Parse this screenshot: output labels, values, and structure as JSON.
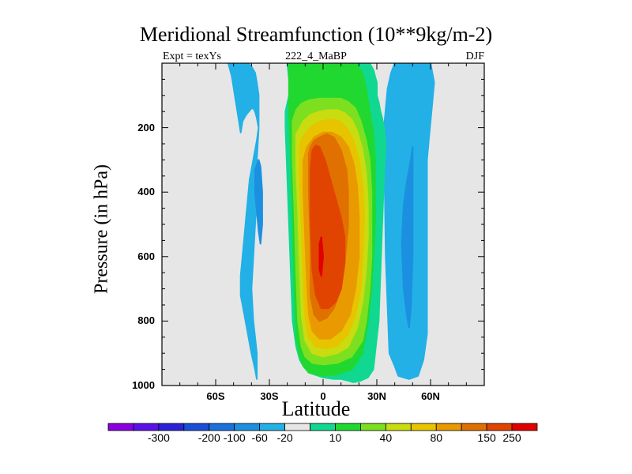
{
  "chart_data": {
    "type": "heatmap",
    "title": "Meridional Streamfunction (10**9kg/m-2)",
    "subtitle_left": "Expt = texYs",
    "subtitle_center": "222_4_MaBP",
    "subtitle_right": "DJF",
    "xlabel": "Latitude",
    "ylabel": "Pressure (in hPa)",
    "xlim": [
      -90,
      90
    ],
    "ylim": [
      1000,
      0
    ],
    "xticks": [
      "60S",
      "30S",
      "0",
      "30N",
      "60N"
    ],
    "xtick_values": [
      -60,
      -30,
      0,
      30,
      60
    ],
    "yticks": [
      "200",
      "400",
      "600",
      "800",
      "1000"
    ],
    "ytick_values": [
      200,
      400,
      600,
      800,
      1000
    ],
    "colorbar": {
      "labels": [
        "-300",
        "-200",
        "-100",
        "-60",
        "-20",
        "10",
        "40",
        "80",
        "150",
        "250"
      ],
      "colors": [
        "#8a00e0",
        "#5a10e6",
        "#2b22d8",
        "#1b4ed6",
        "#1b70dc",
        "#1c90e0",
        "#22b0e6",
        "#e6e6e6",
        "#10d890",
        "#20d830",
        "#7ce020",
        "#c8dc10",
        "#e8c400",
        "#e89a00",
        "#e07000",
        "#e04400",
        "#e00000"
      ],
      "label_after_index": [
        1,
        3,
        4,
        5,
        6,
        8,
        10,
        12,
        14,
        15
      ]
    },
    "background_color": "#e6e6e6",
    "regions": [
      {
        "name": "northern-weak-negative",
        "value": -20,
        "color": "#22b0e6",
        "lat": [
          -53,
          -51,
          -49,
          -47,
          -46,
          -45,
          -43,
          -40,
          -39,
          -38,
          -37,
          -36,
          -37,
          -39,
          -41,
          -42,
          -43,
          -44,
          -45,
          -46,
          -46,
          -44,
          -42,
          -40,
          -38,
          -37,
          -37,
          -37,
          -38,
          -39,
          -40,
          -39,
          -38,
          -37,
          -37,
          -36,
          -36,
          -37,
          -38,
          -40,
          -42,
          -44,
          -46,
          -48,
          -49,
          -50,
          -51,
          -52,
          -53
        ],
        "p": [
          0,
          40,
          110,
          180,
          215,
          180,
          160,
          140,
          140,
          150,
          170,
          200,
          240,
          300,
          360,
          420,
          480,
          540,
          600,
          660,
          720,
          780,
          840,
          900,
          950,
          980,
          950,
          900,
          850,
          800,
          700,
          600,
          500,
          400,
          300,
          200,
          100,
          60,
          30,
          10,
          0,
          0,
          0,
          0,
          0,
          0,
          0,
          0,
          0
        ]
      },
      {
        "name": "northern-negative-core",
        "value": -60,
        "color": "#1c90e0",
        "lat": [
          -38,
          -36,
          -35,
          -34,
          -34,
          -35,
          -36,
          -37,
          -38,
          -38,
          -38,
          -37
        ],
        "p": [
          330,
          300,
          320,
          400,
          500,
          560,
          520,
          460,
          400,
          360,
          330,
          330
        ]
      },
      {
        "name": "southern-weak-negative",
        "value": -20,
        "color": "#22b0e6",
        "lat": [
          42,
          44,
          47,
          50,
          52,
          58,
          60,
          62,
          61,
          60,
          59,
          58,
          58,
          58,
          58,
          58,
          58,
          58,
          56,
          53,
          48,
          42,
          40,
          37,
          35,
          34,
          36,
          38,
          40
        ],
        "p": [
          0,
          0,
          0,
          0,
          0,
          0,
          0,
          60,
          120,
          180,
          240,
          300,
          360,
          420,
          480,
          560,
          680,
          840,
          920,
          970,
          980,
          970,
          940,
          900,
          600,
          200,
          80,
          30,
          0
        ]
      },
      {
        "name": "southern-negative-core",
        "value": -60,
        "color": "#1c90e0",
        "lat": [
          50,
          49,
          47,
          45,
          44,
          45,
          47,
          48,
          49,
          50,
          50
        ],
        "p": [
          260,
          300,
          360,
          440,
          560,
          700,
          790,
          820,
          760,
          600,
          260
        ]
      },
      {
        "name": "hadley-10",
        "value": 10,
        "color": "#10d890",
        "lat": [
          -20,
          -19,
          -19,
          -21,
          -21,
          -19,
          -17,
          -15,
          -14,
          -13,
          -11,
          -8,
          0,
          6,
          10,
          14,
          17,
          21,
          25,
          28,
          31,
          33,
          34,
          35,
          34,
          33,
          32,
          31,
          30,
          30,
          30,
          29,
          28,
          27,
          26,
          26,
          25,
          24,
          23,
          22,
          20
        ],
        "p": [
          0,
          50,
          100,
          150,
          200,
          500,
          800,
          880,
          900,
          920,
          940,
          960,
          975,
          980,
          980,
          985,
          990,
          985,
          975,
          950,
          800,
          500,
          350,
          250,
          200,
          170,
          150,
          120,
          100,
          80,
          60,
          40,
          20,
          10,
          0,
          0,
          0,
          0,
          0,
          0,
          0
        ]
      },
      {
        "name": "hadley-40",
        "value": 40,
        "color": "#20d830",
        "lat": [
          -19,
          -19,
          -18,
          -17,
          -16,
          -15,
          -13,
          -11,
          -8,
          0,
          8,
          16,
          22,
          25,
          27,
          28,
          29,
          29,
          29,
          28,
          26,
          24,
          22,
          18,
          10,
          0,
          -8,
          -14,
          -18
        ],
        "p": [
          0,
          150,
          300,
          500,
          700,
          850,
          910,
          940,
          960,
          970,
          965,
          950,
          900,
          800,
          700,
          600,
          500,
          400,
          300,
          220,
          150,
          80,
          30,
          0,
          0,
          0,
          0,
          0,
          0
        ]
      },
      {
        "name": "hadley-80",
        "value": 80,
        "color": "#7ce020",
        "lat": [
          -17,
          -17,
          -16,
          -15,
          -14,
          -12,
          -10,
          -6,
          0,
          8,
          16,
          22,
          24,
          26,
          27,
          27,
          27,
          26,
          24,
          21,
          18,
          14,
          10,
          4,
          -2,
          -8,
          -12,
          -15,
          -17
        ],
        "p": [
          180,
          300,
          450,
          650,
          800,
          880,
          910,
          930,
          935,
          930,
          910,
          860,
          800,
          700,
          600,
          500,
          400,
          300,
          240,
          180,
          140,
          120,
          110,
          110,
          110,
          115,
          125,
          145,
          180
        ]
      },
      {
        "name": "hadley-120",
        "value": 120,
        "color": "#c8dc10",
        "lat": [
          -15,
          -15,
          -14,
          -13,
          -12,
          -10,
          -6,
          0,
          8,
          14,
          19,
          22,
          24,
          25,
          25,
          24,
          22,
          19,
          16,
          12,
          8,
          3,
          -2,
          -7,
          -11,
          -13,
          -15
        ],
        "p": [
          220,
          320,
          460,
          640,
          780,
          860,
          900,
          910,
          900,
          880,
          820,
          740,
          640,
          540,
          440,
          340,
          270,
          210,
          175,
          155,
          145,
          145,
          150,
          160,
          180,
          200,
          220
        ]
      },
      {
        "name": "hadley-150",
        "value": 150,
        "color": "#e8c400",
        "lat": [
          -13,
          -13,
          -12,
          -11,
          -10,
          -8,
          -4,
          2,
          8,
          14,
          18,
          21,
          22,
          23,
          22,
          20,
          17,
          13,
          9,
          4,
          -1,
          -5,
          -9,
          -12,
          -13
        ],
        "p": [
          260,
          360,
          500,
          660,
          790,
          850,
          880,
          885,
          875,
          840,
          780,
          700,
          600,
          480,
          380,
          300,
          240,
          200,
          180,
          175,
          180,
          190,
          210,
          235,
          260
        ]
      },
      {
        "name": "hadley-200",
        "value": 200,
        "color": "#e89a00",
        "lat": [
          -11,
          -11,
          -10,
          -9,
          -8,
          -6,
          -2,
          4,
          10,
          15,
          18,
          20,
          20,
          19,
          17,
          14,
          10,
          5,
          0,
          -5,
          -9,
          -11
        ],
        "p": [
          300,
          400,
          540,
          680,
          780,
          830,
          855,
          855,
          830,
          780,
          700,
          600,
          480,
          380,
          310,
          260,
          230,
          215,
          215,
          230,
          260,
          300
        ]
      },
      {
        "name": "hadley-250",
        "value": 250,
        "color": "#e07000",
        "lat": [
          -8,
          -8,
          -7,
          -7,
          -5,
          -2,
          2,
          6,
          10,
          12,
          14,
          14,
          13,
          10,
          6,
          2,
          -2,
          -5,
          -7,
          -8
        ],
        "p": [
          280,
          400,
          560,
          720,
          780,
          800,
          790,
          760,
          700,
          620,
          500,
          400,
          330,
          270,
          230,
          220,
          230,
          240,
          260,
          280
        ]
      },
      {
        "name": "hadley-300",
        "value": 300,
        "color": "#e04400",
        "lat": [
          -7,
          -7,
          -6,
          -4,
          -1,
          3,
          7,
          10,
          12,
          12,
          10,
          7,
          4,
          1,
          -2,
          -4,
          -6,
          -7
        ],
        "p": [
          330,
          480,
          640,
          720,
          760,
          760,
          740,
          700,
          620,
          540,
          480,
          420,
          360,
          300,
          260,
          255,
          270,
          330
        ]
      },
      {
        "name": "hadley-peak",
        "value": 350,
        "color": "#e00000",
        "lat": [
          -2,
          -1,
          0,
          -1,
          -2,
          -2
        ],
        "p": [
          560,
          540,
          600,
          660,
          640,
          560
        ]
      }
    ]
  }
}
